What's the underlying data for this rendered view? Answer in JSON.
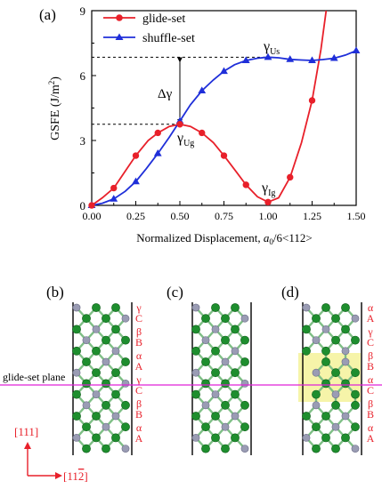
{
  "panel_labels": {
    "a": "(a)",
    "b": "(b)",
    "c": "(c)",
    "d": "(d)"
  },
  "colors": {
    "glide": "#e8202a",
    "shuffle": "#1f2fd9",
    "atom_green": "#1e8e2e",
    "atom_gray": "#9a9cb4",
    "plane": "#e020d8",
    "axis_arrow": "#e8202a",
    "highlight": "#f4f29a"
  },
  "chart_data": {
    "type": "line",
    "xlabel_prefix": "Normalized Displacement, ",
    "xlabel_var": "a",
    "xlabel_sub": "0",
    "xlabel_suffix": "/6<112>",
    "ylabel": "GSFE (J/m",
    "ylabel_sup": "2",
    "ylabel_close": ")",
    "xlim": [
      0,
      1.5
    ],
    "ylim": [
      0,
      9
    ],
    "xticks": [
      "0.00",
      "0.25",
      "0.50",
      "0.75",
      "1.00",
      "1.25",
      "1.50"
    ],
    "yticks": [
      "0",
      "3",
      "6",
      "9"
    ],
    "legend_position": "top-left",
    "series": [
      {
        "name": "glide-set",
        "marker": "circle",
        "x": [
          0,
          0.125,
          0.25,
          0.375,
          0.5,
          0.625,
          0.75,
          0.875,
          1.0,
          1.125,
          1.25
        ],
        "y": [
          0.0,
          0.8,
          2.3,
          3.35,
          3.75,
          3.35,
          2.3,
          0.95,
          0.15,
          1.3,
          4.85
        ]
      },
      {
        "name": "shuffle-set",
        "marker": "triangle",
        "x": [
          0,
          0.125,
          0.25,
          0.375,
          0.5,
          0.625,
          0.75,
          0.875,
          1.0,
          1.125,
          1.25,
          1.375,
          1.5
        ],
        "y": [
          0.0,
          0.3,
          1.1,
          2.4,
          3.9,
          5.3,
          6.2,
          6.7,
          6.85,
          6.75,
          6.7,
          6.8,
          7.15
        ]
      }
    ],
    "curves": {
      "glide": {
        "x": [
          0,
          0.06,
          0.125,
          0.2,
          0.25,
          0.32,
          0.375,
          0.44,
          0.5,
          0.56,
          0.625,
          0.69,
          0.75,
          0.82,
          0.875,
          0.94,
          1.0,
          1.06,
          1.125,
          1.19,
          1.25,
          1.3,
          1.33
        ],
        "y": [
          0,
          0.35,
          0.8,
          1.7,
          2.3,
          3.0,
          3.35,
          3.65,
          3.75,
          3.65,
          3.35,
          2.9,
          2.3,
          1.55,
          0.95,
          0.4,
          0.15,
          0.35,
          1.3,
          2.9,
          4.85,
          7.2,
          9.0
        ]
      },
      "shuffle": {
        "x": [
          0,
          0.06,
          0.125,
          0.19,
          0.25,
          0.31,
          0.375,
          0.44,
          0.5,
          0.56,
          0.625,
          0.69,
          0.75,
          0.81,
          0.875,
          0.94,
          1.0,
          1.06,
          1.125,
          1.19,
          1.25,
          1.31,
          1.375,
          1.44,
          1.5
        ],
        "y": [
          0,
          0.1,
          0.3,
          0.65,
          1.1,
          1.7,
          2.4,
          3.15,
          3.9,
          4.65,
          5.3,
          5.8,
          6.2,
          6.5,
          6.7,
          6.8,
          6.85,
          6.82,
          6.75,
          6.72,
          6.7,
          6.74,
          6.8,
          6.95,
          7.15
        ]
      }
    },
    "annotations": {
      "gamma_us": {
        "sym": "γ",
        "sub": "Us"
      },
      "gamma_ug": {
        "sym": "γ",
        "sub": "Ug"
      },
      "gamma_ig": {
        "sym": "γ",
        "sub": "Ig"
      },
      "delta_gamma": "Δγ",
      "us_level": 6.85,
      "ug_level": 3.75
    }
  },
  "structure": {
    "plane_label": "glide-set plane",
    "stack_b": [
      {
        "sym": "γ",
        "letter": "C"
      },
      {
        "sym": "β",
        "letter": "B"
      },
      {
        "sym": "α",
        "letter": "A"
      },
      {
        "sym": "γ",
        "letter": "C"
      },
      {
        "sym": "β",
        "letter": "B"
      },
      {
        "sym": "α",
        "letter": "A"
      }
    ],
    "stack_d": [
      {
        "sym": "α",
        "letter": "A"
      },
      {
        "sym": "γ",
        "letter": "C"
      },
      {
        "sym": "β",
        "letter": "B"
      },
      {
        "sym": "α",
        "letter": "C"
      },
      {
        "sym": "β",
        "letter": "B"
      },
      {
        "sym": "α",
        "letter": "A"
      }
    ],
    "axis_vertical": "[111]",
    "axis_horizontal_pre": "[11",
    "axis_horizontal_bar": "2",
    "axis_horizontal_post": "]"
  }
}
